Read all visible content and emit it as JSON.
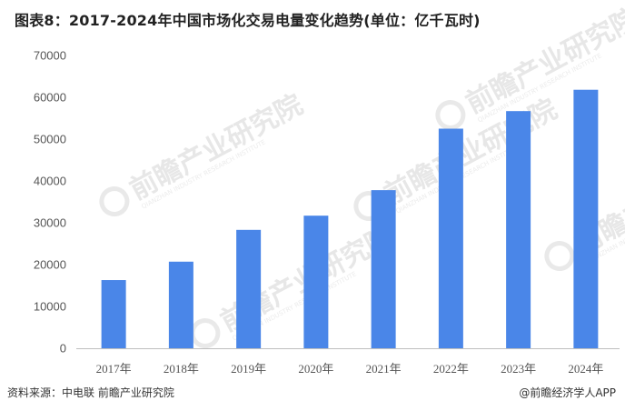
{
  "title": "图表8：2017-2024年中国市场化交易电量变化趋势(单位：亿千瓦时)",
  "chart_data": {
    "type": "bar",
    "categories": [
      "2017年",
      "2018年",
      "2019年",
      "2020年",
      "2021年",
      "2022年",
      "2023年",
      "2024年"
    ],
    "values": [
      16300,
      20700,
      28300,
      31700,
      37800,
      52500,
      56700,
      61800
    ],
    "yticks": [
      "0",
      "10000",
      "20000",
      "30000",
      "40000",
      "50000",
      "60000",
      "70000"
    ],
    "ylim": [
      0,
      70000
    ],
    "bar_color": "#4a86e8",
    "grid": false
  },
  "watermark": {
    "text": "前瞻产业研究院",
    "sub": "QIANZHAN INDUSTRY RESEARCH INSTITUTE"
  },
  "footer": {
    "source": "资料来源：中电联 前瞻产业研究院",
    "brand": "@前瞻经济学人APP"
  }
}
